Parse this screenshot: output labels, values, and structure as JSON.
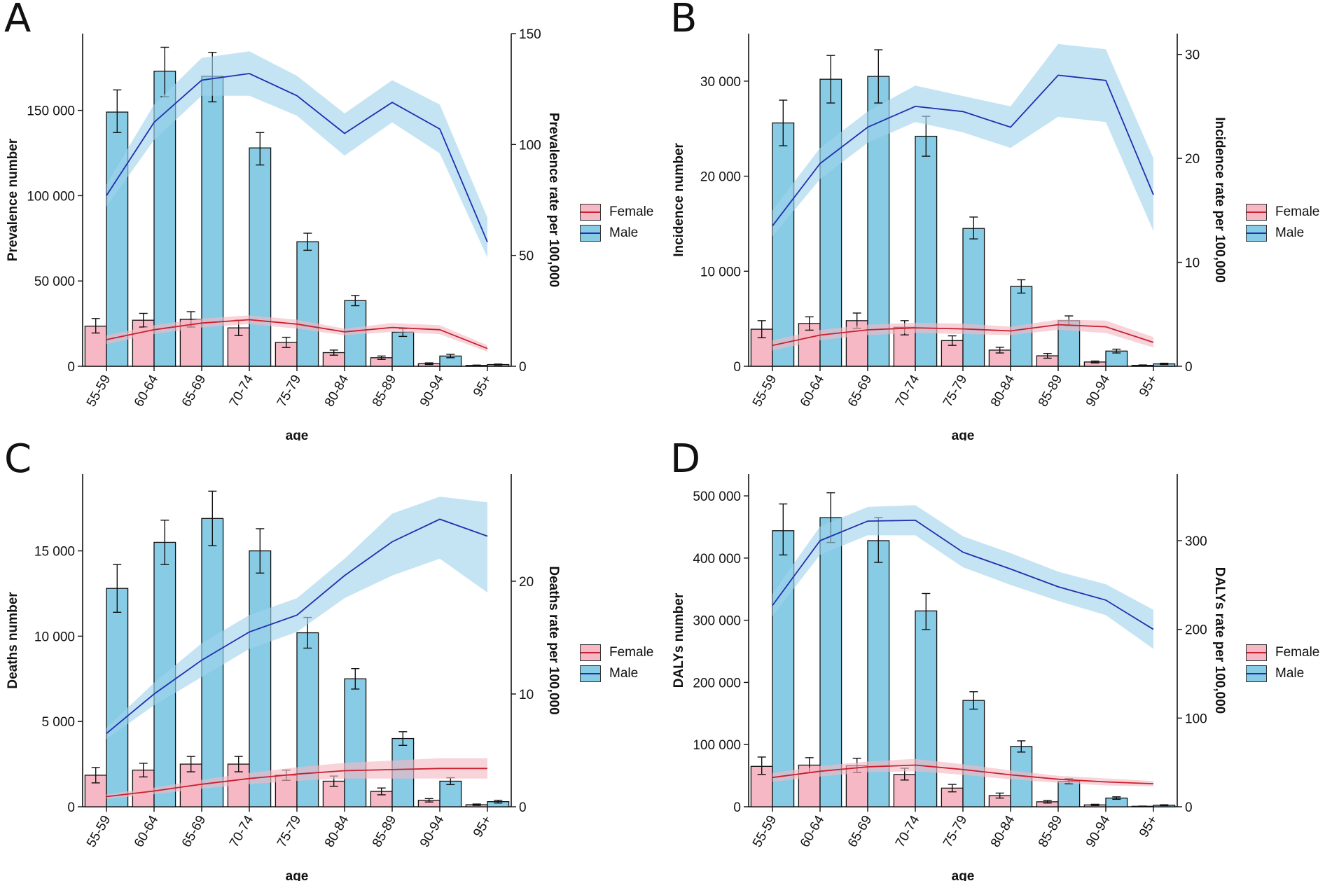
{
  "legend": {
    "female": "Female",
    "male": "Male"
  },
  "colors": {
    "female_bar": "#f6b8c4",
    "female_line": "#c8212f",
    "female_ribbon": "#f6b8c4",
    "male_bar": "#87cbe5",
    "male_line": "#1f2fb0",
    "male_ribbon": "#9fd3ec"
  },
  "chart_data": [
    {
      "panel": "A",
      "type": "bar",
      "xlabel": "age",
      "ylabel": "Prevalence number",
      "y2label": "Prevalence rate per 100,000",
      "categories": [
        "55-59",
        "60-64",
        "65-69",
        "70-74",
        "75-79",
        "80-84",
        "85-89",
        "90-94",
        "95+"
      ],
      "ylim": [
        0,
        195000
      ],
      "yticks": [
        0,
        50000,
        100000,
        150000
      ],
      "ytick_labels": [
        "0",
        "50 000",
        "100 000",
        "150 000"
      ],
      "y2lim": [
        0,
        150
      ],
      "y2ticks": [
        0,
        50,
        100,
        150
      ],
      "bars": {
        "Female": {
          "values": [
            23500,
            27000,
            27500,
            22500,
            14000,
            8000,
            5000,
            1500,
            500
          ],
          "err": [
            [
              19500,
              28000
            ],
            [
              23000,
              31000
            ],
            [
              23000,
              32000
            ],
            [
              18000,
              27000
            ],
            [
              11000,
              17000
            ],
            [
              6500,
              9500
            ],
            [
              4000,
              6000
            ],
            [
              1000,
              2000
            ],
            [
              300,
              700
            ]
          ]
        },
        "Male": {
          "values": [
            149000,
            173000,
            170000,
            128000,
            73000,
            38500,
            20000,
            6000,
            1000
          ],
          "err": [
            [
              137000,
              162000
            ],
            [
              158000,
              187000
            ],
            [
              155000,
              184000
            ],
            [
              118000,
              137000
            ],
            [
              68000,
              78000
            ],
            [
              35500,
              41500
            ],
            [
              17500,
              22000
            ],
            [
              5000,
              7000
            ],
            [
              700,
              1300
            ]
          ]
        }
      },
      "rates": {
        "Female": {
          "values": [
            12,
            16.5,
            19.5,
            21,
            19,
            15.5,
            17.5,
            16.5,
            8
          ],
          "lower": [
            10,
            14.5,
            17.5,
            19,
            17,
            14,
            15.5,
            14.5,
            6.5
          ],
          "upper": [
            14,
            18.5,
            21.5,
            23,
            21,
            17,
            19.5,
            18.5,
            9.5
          ]
        },
        "Male": {
          "values": [
            77,
            110,
            129,
            132,
            122,
            105,
            119,
            107,
            56
          ],
          "lower": [
            72,
            102,
            122,
            122,
            113,
            95,
            110,
            96,
            49
          ],
          "upper": [
            82,
            118,
            139,
            142,
            131,
            114,
            129,
            118,
            67
          ]
        }
      }
    },
    {
      "panel": "B",
      "type": "bar",
      "xlabel": "age",
      "ylabel": "Incidence number",
      "y2label": "Incidence rate per 100,000",
      "categories": [
        "55-59",
        "60-64",
        "65-69",
        "70-74",
        "75-79",
        "80-84",
        "85-89",
        "90-94",
        "95+"
      ],
      "ylim": [
        0,
        35000
      ],
      "yticks": [
        0,
        10000,
        20000,
        30000
      ],
      "ytick_labels": [
        "0",
        "10 000",
        "20 000",
        "30 000"
      ],
      "y2lim": [
        0,
        32
      ],
      "y2ticks": [
        0,
        10,
        20,
        30
      ],
      "bars": {
        "Female": {
          "values": [
            3900,
            4500,
            4800,
            4100,
            2700,
            1700,
            1100,
            450,
            100
          ],
          "err": [
            [
              3000,
              4800
            ],
            [
              3800,
              5200
            ],
            [
              4000,
              5600
            ],
            [
              3300,
              4800
            ],
            [
              2200,
              3200
            ],
            [
              1400,
              2000
            ],
            [
              850,
              1350
            ],
            [
              350,
              550
            ],
            [
              60,
              140
            ]
          ]
        },
        "Male": {
          "values": [
            25600,
            30200,
            30500,
            24200,
            14500,
            8400,
            4800,
            1600,
            250
          ],
          "err": [
            [
              23200,
              28000
            ],
            [
              27700,
              32700
            ],
            [
              27700,
              33300
            ],
            [
              22100,
              26300
            ],
            [
              13400,
              15700
            ],
            [
              7700,
              9100
            ],
            [
              4300,
              5300
            ],
            [
              1400,
              1800
            ],
            [
              180,
              320
            ]
          ]
        }
      },
      "rates": {
        "Female": {
          "values": [
            2,
            3,
            3.5,
            3.7,
            3.6,
            3.4,
            4,
            3.8,
            2.3
          ],
          "lower": [
            1.5,
            2.5,
            3,
            3.2,
            3.1,
            3,
            3.5,
            3.2,
            1.8
          ],
          "upper": [
            2.5,
            3.5,
            4,
            4.2,
            4.1,
            3.8,
            4.5,
            4.4,
            2.8
          ]
        },
        "Male": {
          "values": [
            13.5,
            19.5,
            23,
            25,
            24.5,
            23,
            28,
            27.5,
            16.5
          ],
          "lower": [
            12.5,
            18,
            21.5,
            23.5,
            22.5,
            21,
            24,
            23.5,
            13
          ],
          "upper": [
            15,
            21,
            24.5,
            27,
            26,
            25,
            31,
            30.5,
            20
          ]
        }
      }
    },
    {
      "panel": "C",
      "type": "bar",
      "xlabel": "age",
      "ylabel": "Deaths number",
      "y2label": "Deaths rate per 100,000",
      "categories": [
        "55-59",
        "60-64",
        "65-69",
        "70-74",
        "75-79",
        "80-84",
        "85-89",
        "90-94",
        "95+"
      ],
      "ylim": [
        0,
        19500
      ],
      "yticks": [
        0,
        5000,
        10000,
        15000
      ],
      "ytick_labels": [
        "0",
        "5 000",
        "10 000",
        "15 000"
      ],
      "y2lim": [
        0,
        29.5
      ],
      "y2ticks": [
        0,
        10,
        20
      ],
      "bars": {
        "Female": {
          "values": [
            1850,
            2150,
            2500,
            2500,
            1850,
            1500,
            900,
            380,
            120
          ],
          "err": [
            [
              1400,
              2300
            ],
            [
              1750,
              2550
            ],
            [
              2050,
              2950
            ],
            [
              2050,
              2950
            ],
            [
              1550,
              2150
            ],
            [
              1200,
              1800
            ],
            [
              700,
              1100
            ],
            [
              280,
              480
            ],
            [
              80,
              160
            ]
          ]
        },
        "Male": {
          "values": [
            12800,
            15500,
            16900,
            15000,
            10200,
            7500,
            4000,
            1500,
            300
          ],
          "err": [
            [
              11400,
              14200
            ],
            [
              14200,
              16800
            ],
            [
              15300,
              18500
            ],
            [
              13700,
              16300
            ],
            [
              9300,
              11100
            ],
            [
              6900,
              8100
            ],
            [
              3600,
              4400
            ],
            [
              1300,
              1700
            ],
            [
              220,
              380
            ]
          ]
        }
      },
      "rates": {
        "Female": {
          "values": [
            0.9,
            1.4,
            2,
            2.5,
            2.9,
            3.2,
            3.3,
            3.4,
            3.4
          ],
          "lower": [
            0.7,
            1.1,
            1.6,
            2,
            2.3,
            2.5,
            2.5,
            2.5,
            2.5
          ],
          "upper": [
            1.1,
            1.7,
            2.4,
            3,
            3.5,
            3.9,
            4.1,
            4.3,
            4.3
          ]
        },
        "Male": {
          "values": [
            6.5,
            10,
            13,
            15.5,
            17,
            20.5,
            23.5,
            25.5,
            24
          ],
          "lower": [
            6,
            9,
            11.5,
            14,
            15.5,
            18.5,
            20.5,
            22,
            19
          ],
          "upper": [
            7,
            11,
            14.5,
            17,
            18.5,
            22,
            26,
            27.5,
            27
          ]
        }
      }
    },
    {
      "panel": "D",
      "type": "bar",
      "xlabel": "age",
      "ylabel": "DALYs number",
      "y2label": "DALYs rate per 100,000",
      "categories": [
        "55-59",
        "60-64",
        "65-69",
        "70-74",
        "75-79",
        "80-84",
        "85-89",
        "90-94",
        "95+"
      ],
      "ylim": [
        0,
        535000
      ],
      "yticks": [
        0,
        100000,
        200000,
        300000,
        400000,
        500000
      ],
      "ytick_labels": [
        "0",
        "100 000",
        "200 000",
        "300 000",
        "400 000",
        "500 000"
      ],
      "y2lim": [
        0,
        375
      ],
      "y2ticks": [
        0,
        100,
        200,
        300
      ],
      "bars": {
        "Female": {
          "values": [
            65000,
            67000,
            66000,
            52000,
            30000,
            18000,
            8000,
            3000,
            800
          ],
          "err": [
            [
              52000,
              80000
            ],
            [
              55000,
              79000
            ],
            [
              55000,
              78000
            ],
            [
              43000,
              62000
            ],
            [
              24000,
              36000
            ],
            [
              14000,
              22000
            ],
            [
              6000,
              10000
            ],
            [
              2000,
              4000
            ],
            [
              500,
              1100
            ]
          ]
        },
        "Male": {
          "values": [
            444000,
            465000,
            428000,
            315000,
            171000,
            97000,
            41000,
            14000,
            2500
          ],
          "err": [
            [
              405000,
              487000
            ],
            [
              425000,
              505000
            ],
            [
              393000,
              465000
            ],
            [
              285000,
              343000
            ],
            [
              157000,
              185000
            ],
            [
              88000,
              106000
            ],
            [
              37000,
              45000
            ],
            [
              12000,
              16000
            ],
            [
              1800,
              3200
            ]
          ]
        }
      },
      "rates": {
        "Female": {
          "values": [
            33,
            40,
            45,
            47,
            42,
            36,
            31,
            28,
            26
          ],
          "lower": [
            28,
            34,
            39,
            40,
            36,
            31,
            27,
            24,
            23
          ],
          "upper": [
            38,
            46,
            51,
            54,
            48,
            41,
            35,
            32,
            29
          ]
        },
        "Male": {
          "values": [
            227,
            300,
            322,
            323,
            287,
            268,
            248,
            233,
            200
          ],
          "lower": [
            215,
            284,
            306,
            306,
            270,
            250,
            232,
            216,
            178
          ],
          "upper": [
            240,
            316,
            338,
            340,
            305,
            286,
            265,
            251,
            222
          ]
        }
      }
    }
  ]
}
